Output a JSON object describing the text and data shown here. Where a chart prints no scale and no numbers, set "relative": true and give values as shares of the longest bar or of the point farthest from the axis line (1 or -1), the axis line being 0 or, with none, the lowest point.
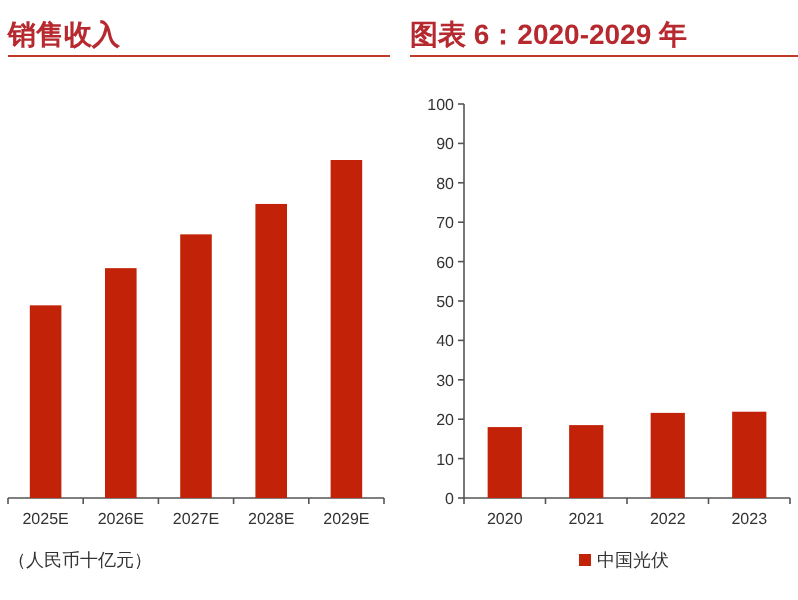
{
  "chart_data": [
    {
      "type": "bar",
      "title": "销售收入",
      "categories": [
        "2025E",
        "2026E",
        "2027E",
        "2028E",
        "2029E"
      ],
      "relative": true,
      "series": [
        {
          "color": "#c22208",
          "values": [
            0.57,
            0.68,
            0.78,
            0.87,
            1
          ]
        }
      ],
      "annotations": [
        "（人民币十亿元）"
      ]
    },
    {
      "type": "bar",
      "title": "图表 6：2020-2029 年",
      "categories": [
        "2020",
        "2021",
        "2022",
        "2023"
      ],
      "ylim": [
        0,
        100
      ],
      "yticks": [
        0,
        10,
        20,
        30,
        40,
        50,
        60,
        70,
        80,
        90,
        100
      ],
      "series": [
        {
          "name": "中国光伏",
          "color": "#c22208",
          "values": [
            18.0,
            18.5,
            21.6,
            21.9
          ]
        }
      ],
      "legend": "bottom"
    }
  ]
}
